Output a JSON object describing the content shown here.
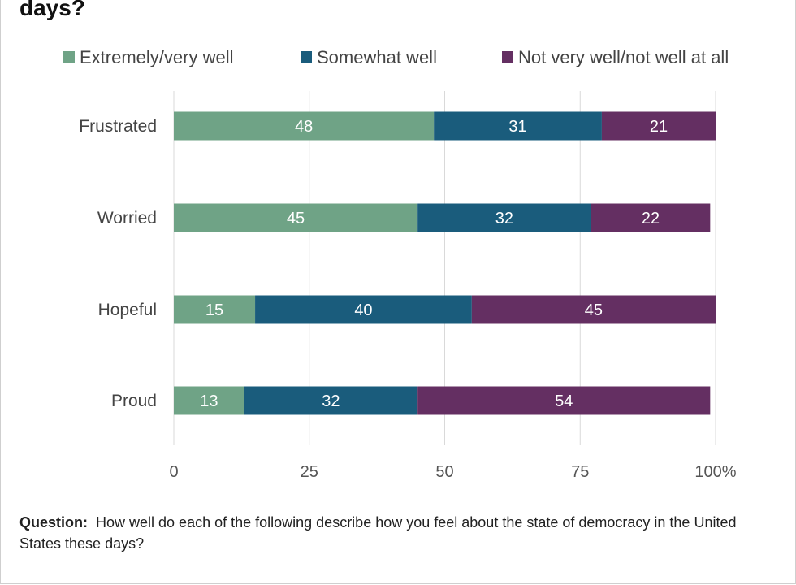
{
  "title": "days?",
  "chart_data": {
    "type": "bar",
    "orientation": "horizontal",
    "stacked": true,
    "categories": [
      "Frustrated",
      "Worried",
      "Hopeful",
      "Proud"
    ],
    "series": [
      {
        "name": "Extremely/very well",
        "values": [
          48,
          45,
          15,
          13
        ],
        "color": "#6fa386"
      },
      {
        "name": "Somewhat well",
        "values": [
          31,
          32,
          40,
          32
        ],
        "color": "#1a5c7c"
      },
      {
        "name": "Not very well/not well at all",
        "values": [
          21,
          22,
          45,
          54
        ],
        "color": "#642f62"
      }
    ],
    "x_ticks": [
      "0",
      "25",
      "50",
      "75",
      "100%"
    ],
    "xlim": [
      0,
      100
    ],
    "legend_position": "top",
    "grid": "vertical"
  },
  "footnote": {
    "label": "Question:",
    "text": "How well do each of the following describe how you feel about the state of democracy in the United States these days?"
  }
}
